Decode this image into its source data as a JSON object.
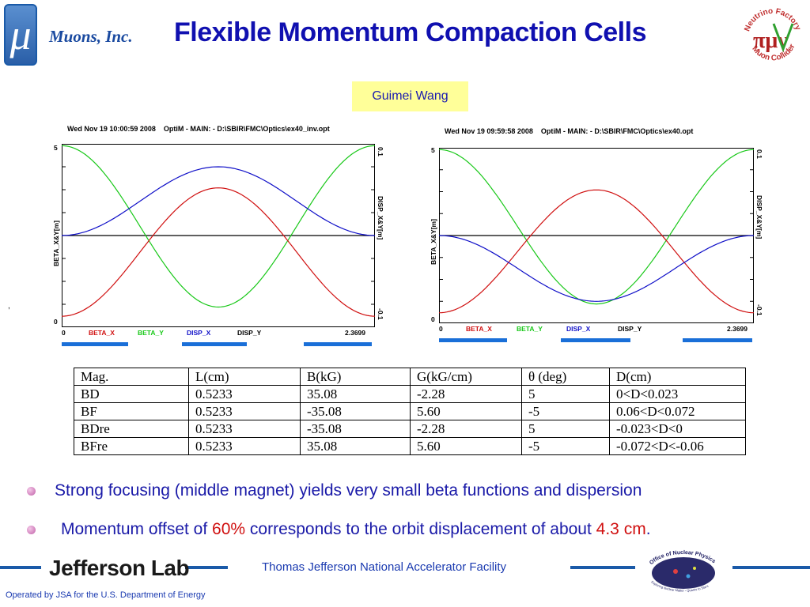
{
  "header": {
    "logo_symbol": "μ",
    "org_name": "Muons, Inc.",
    "title": "Flexible Momentum Compaction  Cells",
    "right_logo_top_text": "Neutrino Factory",
    "right_logo_bottom_text": "Muon Collider",
    "right_logo_symbol": "πμν"
  },
  "author": "Guimei Wang",
  "stray_mark": ",",
  "plots": [
    {
      "header": "Wed Nov 19 10:00:59 2008    OptiM - MAIN: - D:\\SBIR\\FMC\\Optics\\ex40_inv.opt",
      "left_axis_label": "BETA_X&Y[m]",
      "right_axis_label": "DISP_X&Y[m]",
      "left_tick_top": "5",
      "left_tick_bottom": "0",
      "right_tick_top": "0.1",
      "right_tick_bottom": "-0.1",
      "x_start": "0",
      "x_end": "2.3699",
      "legend": [
        "BETA_X",
        "BETA_Y",
        "DISP_X",
        "DISP_Y"
      ],
      "disp_sign": 1
    },
    {
      "header": "Wed Nov 19 09:59:58 2008    OptiM - MAIN: - D:\\SBIR\\FMC\\Optics\\ex40.opt",
      "left_axis_label": "BETA_X&Y[m]",
      "right_axis_label": "DISP_X&Y[m]",
      "left_tick_top": "5",
      "left_tick_bottom": "0",
      "right_tick_top": "0.1",
      "right_tick_bottom": "-0.1",
      "x_start": "0",
      "x_end": "2.3699",
      "legend": [
        "BETA_X",
        "BETA_Y",
        "DISP_X",
        "DISP_Y"
      ],
      "disp_sign": -1
    }
  ],
  "colors": {
    "beta_x": "#d01010",
    "beta_y": "#18c818",
    "disp_x": "#1010c8",
    "disp_y": "#000000",
    "magnet_bar": "#1a6fd8",
    "title": "#1010b0"
  },
  "table": {
    "headers": [
      "Mag.",
      "L(cm)",
      "B(kG)",
      "G(kG/cm)",
      "θ (deg)",
      "D(cm)"
    ],
    "rows": [
      [
        "BD",
        "0.5233",
        "35.08",
        "-2.28",
        "5",
        "0<D<0.023"
      ],
      [
        "BF",
        "0.5233",
        "-35.08",
        "5.60",
        "-5",
        "0.06<D<0.072"
      ],
      [
        "BDre",
        "0.5233",
        "-35.08",
        "-2.28",
        "5",
        "-0.023<D<0"
      ],
      [
        "BFre",
        "0.5233",
        "35.08",
        "5.60",
        "-5",
        "-0.072<D<-0.06"
      ]
    ]
  },
  "bullets": [
    {
      "text": "Strong focusing (middle magnet) yields very small beta functions and dispersion"
    },
    {
      "pre": "Momentum offset of ",
      "highlight1": "60%",
      "mid": " corresponds to the orbit displacement of about ",
      "highlight2": "4.3 cm",
      "post": "."
    }
  ],
  "footer": {
    "lab_name": "Jefferson Lab",
    "facility": "Thomas Jefferson National Accelerator Facility",
    "operated": "Operated by JSA for the U.S. Department of Energy",
    "onp_top": "Office of Nuclear Physics",
    "onp_bottom": "Exploring Nuclear Matter - Quarks to Stars"
  }
}
